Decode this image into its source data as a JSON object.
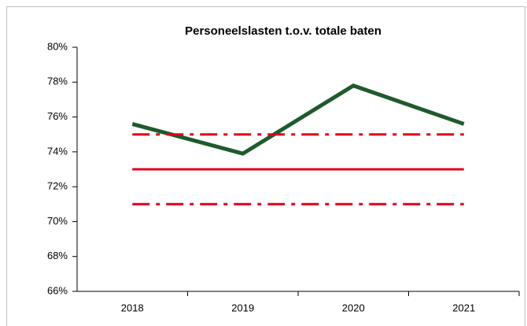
{
  "chart_data": {
    "type": "line",
    "title": "Personeelslasten t.o.v. totale baten",
    "categories": [
      "2018",
      "2019",
      "2020",
      "2021"
    ],
    "series": [
      {
        "color": "#1f5a2c",
        "linestyle": "solid",
        "values": [
          75.6,
          73.9,
          77.8,
          75.6
        ]
      },
      {
        "color": "#e0001b",
        "linestyle": "dashdot",
        "values": [
          75,
          75,
          75,
          75
        ]
      },
      {
        "color": "#e0001b",
        "linestyle": "solid",
        "values": [
          73,
          73,
          73,
          73
        ]
      },
      {
        "color": "#e0001b",
        "linestyle": "dashdot",
        "values": [
          71,
          71,
          71,
          71
        ]
      }
    ],
    "ylim": [
      66,
      80
    ],
    "yticks": [
      {
        "value": 66,
        "label": "66%"
      },
      {
        "value": 68,
        "label": "68%"
      },
      {
        "value": 70,
        "label": "70%"
      },
      {
        "value": 72,
        "label": "72%"
      },
      {
        "value": 74,
        "label": "74%"
      },
      {
        "value": 76,
        "label": "76%"
      },
      {
        "value": 78,
        "label": "78%"
      },
      {
        "value": 80,
        "label": "80%"
      }
    ],
    "grid": false
  }
}
